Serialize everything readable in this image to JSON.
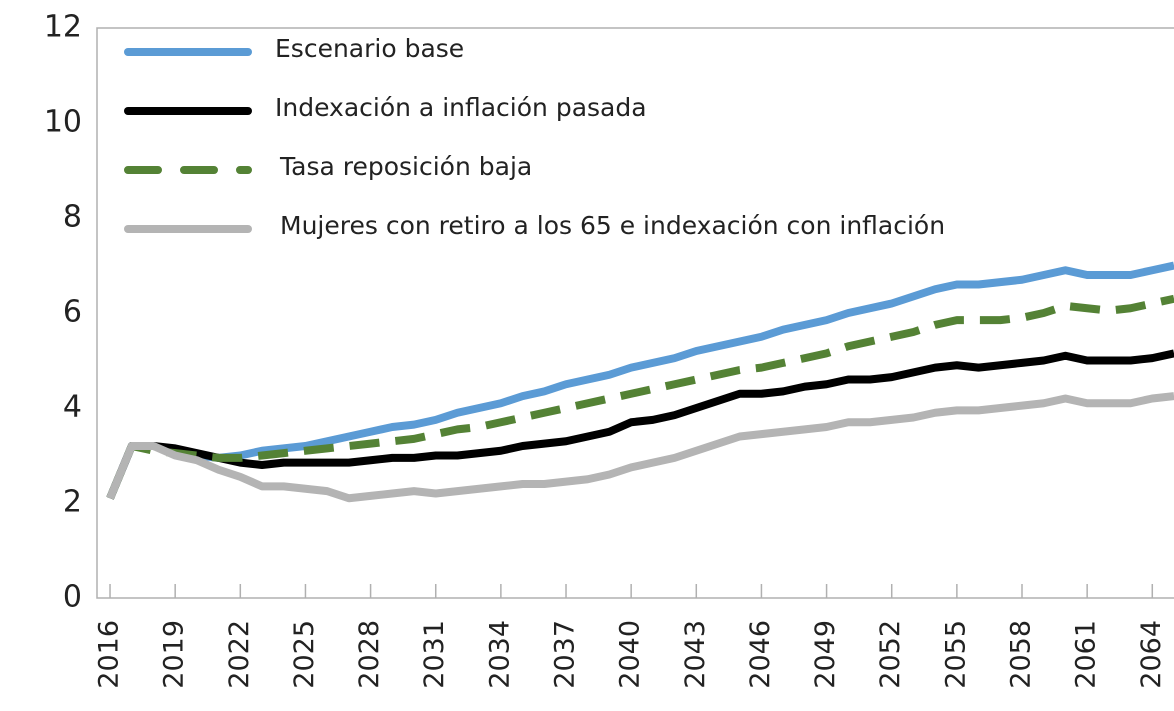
{
  "chart_data": {
    "type": "line",
    "x": [
      2016,
      2017,
      2018,
      2019,
      2020,
      2021,
      2022,
      2023,
      2024,
      2025,
      2026,
      2027,
      2028,
      2029,
      2030,
      2031,
      2032,
      2033,
      2034,
      2035,
      2036,
      2037,
      2038,
      2039,
      2040,
      2041,
      2042,
      2043,
      2044,
      2045,
      2046,
      2047,
      2048,
      2049,
      2050,
      2051,
      2052,
      2053,
      2054,
      2055,
      2056,
      2057,
      2058,
      2059,
      2060,
      2061,
      2062,
      2063,
      2064,
      2065
    ],
    "series": [
      {
        "name": "Escenario base",
        "color": "#5b9bd5",
        "dash": false,
        "values": [
          2.1,
          3.2,
          3.2,
          3.1,
          3.0,
          2.95,
          3.0,
          3.1,
          3.15,
          3.2,
          3.3,
          3.4,
          3.5,
          3.6,
          3.65,
          3.75,
          3.9,
          4.0,
          4.1,
          4.25,
          4.35,
          4.5,
          4.6,
          4.7,
          4.85,
          4.95,
          5.05,
          5.2,
          5.3,
          5.4,
          5.5,
          5.65,
          5.75,
          5.85,
          6.0,
          6.1,
          6.2,
          6.35,
          6.5,
          6.6,
          6.6,
          6.65,
          6.7,
          6.8,
          6.9,
          6.8,
          6.8,
          6.8,
          6.9,
          7.0
        ]
      },
      {
        "name": "Indexación a inflación pasada",
        "color": "#000000",
        "dash": false,
        "values": [
          2.1,
          3.2,
          3.2,
          3.15,
          3.05,
          2.95,
          2.85,
          2.8,
          2.85,
          2.85,
          2.85,
          2.85,
          2.9,
          2.95,
          2.95,
          3.0,
          3.0,
          3.05,
          3.1,
          3.2,
          3.25,
          3.3,
          3.4,
          3.5,
          3.7,
          3.75,
          3.85,
          4.0,
          4.15,
          4.3,
          4.3,
          4.35,
          4.45,
          4.5,
          4.6,
          4.6,
          4.65,
          4.75,
          4.85,
          4.9,
          4.85,
          4.9,
          4.95,
          5.0,
          5.1,
          5.0,
          5.0,
          5.0,
          5.05,
          5.15
        ]
      },
      {
        "name": "Tasa reposición baja",
        "color": "#548235",
        "dash": true,
        "values": [
          2.1,
          3.2,
          3.1,
          3.05,
          3.0,
          2.95,
          2.95,
          3.0,
          3.05,
          3.1,
          3.15,
          3.2,
          3.25,
          3.3,
          3.35,
          3.45,
          3.55,
          3.6,
          3.7,
          3.8,
          3.9,
          4.0,
          4.1,
          4.2,
          4.3,
          4.4,
          4.5,
          4.6,
          4.7,
          4.8,
          4.85,
          4.95,
          5.05,
          5.15,
          5.3,
          5.4,
          5.5,
          5.6,
          5.75,
          5.85,
          5.85,
          5.85,
          5.9,
          6.0,
          6.15,
          6.1,
          6.05,
          6.1,
          6.2,
          6.3
        ]
      },
      {
        "name": "Mujeres con retiro a los 65 e indexación con inflación",
        "color": "#b4b4b4",
        "dash": false,
        "values": [
          2.1,
          3.2,
          3.2,
          3.0,
          2.9,
          2.7,
          2.55,
          2.35,
          2.35,
          2.3,
          2.25,
          2.1,
          2.15,
          2.2,
          2.25,
          2.2,
          2.25,
          2.3,
          2.35,
          2.4,
          2.4,
          2.45,
          2.5,
          2.6,
          2.75,
          2.85,
          2.95,
          3.1,
          3.25,
          3.4,
          3.45,
          3.5,
          3.55,
          3.6,
          3.7,
          3.7,
          3.75,
          3.8,
          3.9,
          3.95,
          3.95,
          4.0,
          4.05,
          4.1,
          4.2,
          4.1,
          4.1,
          4.1,
          4.2,
          4.25
        ]
      }
    ],
    "xlim": [
      2015.4,
      2065
    ],
    "xticks": [
      2016,
      2019,
      2022,
      2025,
      2028,
      2031,
      2034,
      2037,
      2040,
      2043,
      2046,
      2049,
      2052,
      2055,
      2058,
      2061,
      2064
    ],
    "ylim": [
      0,
      12
    ],
    "yticks": [
      0,
      2,
      4,
      6,
      8,
      10,
      12
    ],
    "grid": false,
    "legend": "upper left"
  }
}
